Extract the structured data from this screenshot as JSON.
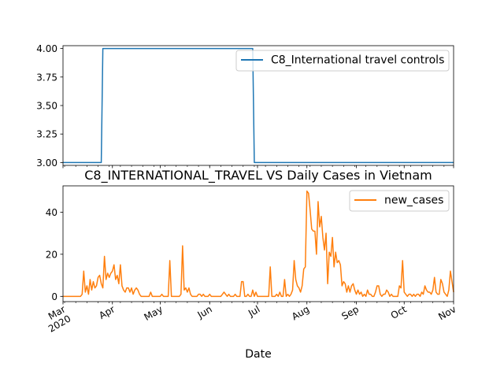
{
  "chart_data": [
    {
      "type": "line",
      "title": "",
      "xlabel": "",
      "ylabel": "",
      "ylim": [
        2.975,
        4.025
      ],
      "yticks": [
        3.0,
        3.25,
        3.5,
        3.75,
        4.0
      ],
      "ytick_labels": [
        "3.00",
        "3.25",
        "3.50",
        "3.75",
        "4.00"
      ],
      "grid": false,
      "legend": "upper right",
      "series": [
        {
          "name": "C8_International travel controls",
          "color": "#1f77b4",
          "points": [
            [
              "2020-03-01",
              3
            ],
            [
              "2020-03-25",
              3
            ],
            [
              "2020-03-26",
              4
            ],
            [
              "2020-06-28",
              4
            ],
            [
              "2020-06-29",
              3
            ],
            [
              "2020-11-01",
              3
            ]
          ]
        }
      ]
    },
    {
      "type": "line",
      "title": "C8_INTERNATIONAL_TRAVEL VS Daily Cases in Vietnam",
      "xlabel": "Date",
      "ylabel": "",
      "ylim": [
        -2.5,
        52.5
      ],
      "yticks": [
        0,
        20,
        40
      ],
      "ytick_labels": [
        "0",
        "20",
        "40"
      ],
      "grid": false,
      "legend": "upper right",
      "xticks": [
        "2020-03-01",
        "2020-04-01",
        "2020-05-01",
        "2020-06-01",
        "2020-07-01",
        "2020-08-01",
        "2020-09-01",
        "2020-10-01",
        "2020-11-01"
      ],
      "xtick_labels": [
        "Mar\n2020",
        "Apr",
        "May",
        "Jun",
        "Jul",
        "Aug",
        "Sep",
        "Oct",
        "Nov"
      ],
      "xlim": [
        "2020-03-01",
        "2020-11-01"
      ],
      "series": [
        {
          "name": "new_cases",
          "color": "#ff7f0e",
          "points": [
            [
              "2020-03-01",
              0
            ],
            [
              "2020-03-06",
              0
            ],
            [
              "2020-03-10",
              0
            ],
            [
              "2020-03-12",
              0
            ],
            [
              "2020-03-13",
              1
            ],
            [
              "2020-03-14",
              12
            ],
            [
              "2020-03-15",
              2
            ],
            [
              "2020-03-16",
              5
            ],
            [
              "2020-03-17",
              1
            ],
            [
              "2020-03-18",
              8
            ],
            [
              "2020-03-19",
              3
            ],
            [
              "2020-03-20",
              7
            ],
            [
              "2020-03-21",
              4
            ],
            [
              "2020-03-22",
              5
            ],
            [
              "2020-03-23",
              9
            ],
            [
              "2020-03-24",
              10
            ],
            [
              "2020-03-25",
              6
            ],
            [
              "2020-03-26",
              4
            ],
            [
              "2020-03-27",
              19
            ],
            [
              "2020-03-28",
              8
            ],
            [
              "2020-03-29",
              11
            ],
            [
              "2020-03-30",
              9
            ],
            [
              "2020-03-31",
              11
            ],
            [
              "2020-04-01",
              12
            ],
            [
              "2020-04-02",
              15
            ],
            [
              "2020-04-03",
              8
            ],
            [
              "2020-04-04",
              10
            ],
            [
              "2020-04-05",
              6
            ],
            [
              "2020-04-06",
              15
            ],
            [
              "2020-04-07",
              5
            ],
            [
              "2020-04-08",
              3
            ],
            [
              "2020-04-09",
              2
            ],
            [
              "2020-04-10",
              4
            ],
            [
              "2020-04-11",
              4
            ],
            [
              "2020-04-12",
              2
            ],
            [
              "2020-04-13",
              4
            ],
            [
              "2020-04-14",
              1
            ],
            [
              "2020-04-15",
              3
            ],
            [
              "2020-04-16",
              4
            ],
            [
              "2020-04-17",
              3
            ],
            [
              "2020-04-18",
              1
            ],
            [
              "2020-04-19",
              0
            ],
            [
              "2020-04-22",
              0
            ],
            [
              "2020-04-24",
              0
            ],
            [
              "2020-04-25",
              2
            ],
            [
              "2020-04-26",
              0
            ],
            [
              "2020-04-30",
              0
            ],
            [
              "2020-05-01",
              0
            ],
            [
              "2020-05-02",
              1
            ],
            [
              "2020-05-03",
              0
            ],
            [
              "2020-05-05",
              0
            ],
            [
              "2020-05-06",
              0
            ],
            [
              "2020-05-07",
              17
            ],
            [
              "2020-05-08",
              0
            ],
            [
              "2020-05-10",
              0
            ],
            [
              "2020-05-13",
              0
            ],
            [
              "2020-05-14",
              1
            ],
            [
              "2020-05-15",
              24
            ],
            [
              "2020-05-16",
              3
            ],
            [
              "2020-05-17",
              4
            ],
            [
              "2020-05-18",
              2
            ],
            [
              "2020-05-19",
              4
            ],
            [
              "2020-05-20",
              1
            ],
            [
              "2020-05-21",
              0
            ],
            [
              "2020-05-24",
              0
            ],
            [
              "2020-05-25",
              1
            ],
            [
              "2020-05-26",
              1
            ],
            [
              "2020-05-27",
              0
            ],
            [
              "2020-05-28",
              1
            ],
            [
              "2020-05-29",
              0
            ],
            [
              "2020-05-31",
              0
            ],
            [
              "2020-06-01",
              1
            ],
            [
              "2020-06-02",
              0
            ],
            [
              "2020-06-08",
              0
            ],
            [
              "2020-06-09",
              1
            ],
            [
              "2020-06-10",
              2
            ],
            [
              "2020-06-11",
              1
            ],
            [
              "2020-06-12",
              0
            ],
            [
              "2020-06-13",
              1
            ],
            [
              "2020-06-14",
              0
            ],
            [
              "2020-06-16",
              0
            ],
            [
              "2020-06-17",
              1
            ],
            [
              "2020-06-18",
              0
            ],
            [
              "2020-06-20",
              0
            ],
            [
              "2020-06-21",
              7
            ],
            [
              "2020-06-22",
              7
            ],
            [
              "2020-06-23",
              0
            ],
            [
              "2020-06-24",
              0
            ],
            [
              "2020-06-25",
              1
            ],
            [
              "2020-06-26",
              0
            ],
            [
              "2020-06-27",
              0
            ],
            [
              "2020-06-28",
              3
            ],
            [
              "2020-06-29",
              0
            ],
            [
              "2020-06-30",
              2
            ],
            [
              "2020-07-01",
              0
            ],
            [
              "2020-07-08",
              0
            ],
            [
              "2020-07-09",
              14
            ],
            [
              "2020-07-10",
              0
            ],
            [
              "2020-07-12",
              0
            ],
            [
              "2020-07-13",
              1
            ],
            [
              "2020-07-14",
              0
            ],
            [
              "2020-07-15",
              2
            ],
            [
              "2020-07-16",
              0
            ],
            [
              "2020-07-17",
              0
            ],
            [
              "2020-07-18",
              8
            ],
            [
              "2020-07-19",
              0
            ],
            [
              "2020-07-20",
              1
            ],
            [
              "2020-07-21",
              0
            ],
            [
              "2020-07-22",
              1
            ],
            [
              "2020-07-23",
              3
            ],
            [
              "2020-07-24",
              17
            ],
            [
              "2020-07-25",
              8
            ],
            [
              "2020-07-26",
              5
            ],
            [
              "2020-07-27",
              4
            ],
            [
              "2020-07-28",
              2
            ],
            [
              "2020-07-29",
              5
            ],
            [
              "2020-07-30",
              13
            ],
            [
              "2020-07-31",
              14
            ],
            [
              "2020-08-01",
              50
            ],
            [
              "2020-08-02",
              49
            ],
            [
              "2020-08-03",
              41
            ],
            [
              "2020-08-04",
              32
            ],
            [
              "2020-08-05",
              31
            ],
            [
              "2020-08-06",
              31
            ],
            [
              "2020-08-07",
              20
            ],
            [
              "2020-08-08",
              45
            ],
            [
              "2020-08-09",
              33
            ],
            [
              "2020-08-10",
              38
            ],
            [
              "2020-08-11",
              28
            ],
            [
              "2020-08-12",
              22
            ],
            [
              "2020-08-13",
              30
            ],
            [
              "2020-08-14",
              6
            ],
            [
              "2020-08-15",
              21
            ],
            [
              "2020-08-16",
              19
            ],
            [
              "2020-08-17",
              28
            ],
            [
              "2020-08-18",
              14
            ],
            [
              "2020-08-19",
              21
            ],
            [
              "2020-08-20",
              16
            ],
            [
              "2020-08-21",
              17
            ],
            [
              "2020-08-22",
              15
            ],
            [
              "2020-08-23",
              5
            ],
            [
              "2020-08-24",
              7
            ],
            [
              "2020-08-25",
              6
            ],
            [
              "2020-08-26",
              2
            ],
            [
              "2020-08-27",
              5
            ],
            [
              "2020-08-28",
              2
            ],
            [
              "2020-08-29",
              5
            ],
            [
              "2020-08-30",
              6
            ],
            [
              "2020-08-31",
              3
            ],
            [
              "2020-09-01",
              1
            ],
            [
              "2020-09-02",
              3
            ],
            [
              "2020-09-03",
              1
            ],
            [
              "2020-09-04",
              2
            ],
            [
              "2020-09-05",
              0
            ],
            [
              "2020-09-06",
              1
            ],
            [
              "2020-09-07",
              0
            ],
            [
              "2020-09-08",
              3
            ],
            [
              "2020-09-09",
              1
            ],
            [
              "2020-09-10",
              1
            ],
            [
              "2020-09-11",
              0
            ],
            [
              "2020-09-12",
              0
            ],
            [
              "2020-09-13",
              2
            ],
            [
              "2020-09-14",
              5
            ],
            [
              "2020-09-15",
              5
            ],
            [
              "2020-09-16",
              1
            ],
            [
              "2020-09-17",
              0
            ],
            [
              "2020-09-18",
              1
            ],
            [
              "2020-09-19",
              1
            ],
            [
              "2020-09-20",
              3
            ],
            [
              "2020-09-21",
              2
            ],
            [
              "2020-09-22",
              0
            ],
            [
              "2020-09-23",
              1
            ],
            [
              "2020-09-24",
              0
            ],
            [
              "2020-09-25",
              0
            ],
            [
              "2020-09-26",
              0
            ],
            [
              "2020-09-27",
              0
            ],
            [
              "2020-09-28",
              5
            ],
            [
              "2020-09-29",
              4
            ],
            [
              "2020-09-30",
              17
            ],
            [
              "2020-10-01",
              2
            ],
            [
              "2020-10-02",
              1
            ],
            [
              "2020-10-03",
              0
            ],
            [
              "2020-10-04",
              1
            ],
            [
              "2020-10-05",
              1
            ],
            [
              "2020-10-06",
              0
            ],
            [
              "2020-10-07",
              1
            ],
            [
              "2020-10-08",
              0
            ],
            [
              "2020-10-09",
              1
            ],
            [
              "2020-10-10",
              1
            ],
            [
              "2020-10-11",
              0
            ],
            [
              "2020-10-12",
              2
            ],
            [
              "2020-10-13",
              1
            ],
            [
              "2020-10-14",
              5
            ],
            [
              "2020-10-15",
              3
            ],
            [
              "2020-10-16",
              2
            ],
            [
              "2020-10-17",
              2
            ],
            [
              "2020-10-18",
              1
            ],
            [
              "2020-10-19",
              3
            ],
            [
              "2020-10-20",
              9
            ],
            [
              "2020-10-21",
              2
            ],
            [
              "2020-10-22",
              1
            ],
            [
              "2020-10-23",
              1
            ],
            [
              "2020-10-24",
              8
            ],
            [
              "2020-10-25",
              6
            ],
            [
              "2020-10-26",
              2
            ],
            [
              "2020-10-27",
              1
            ],
            [
              "2020-10-28",
              0
            ],
            [
              "2020-10-29",
              3
            ],
            [
              "2020-10-30",
              12
            ],
            [
              "2020-10-31",
              7
            ],
            [
              "2020-11-01",
              2
            ]
          ]
        }
      ]
    }
  ]
}
